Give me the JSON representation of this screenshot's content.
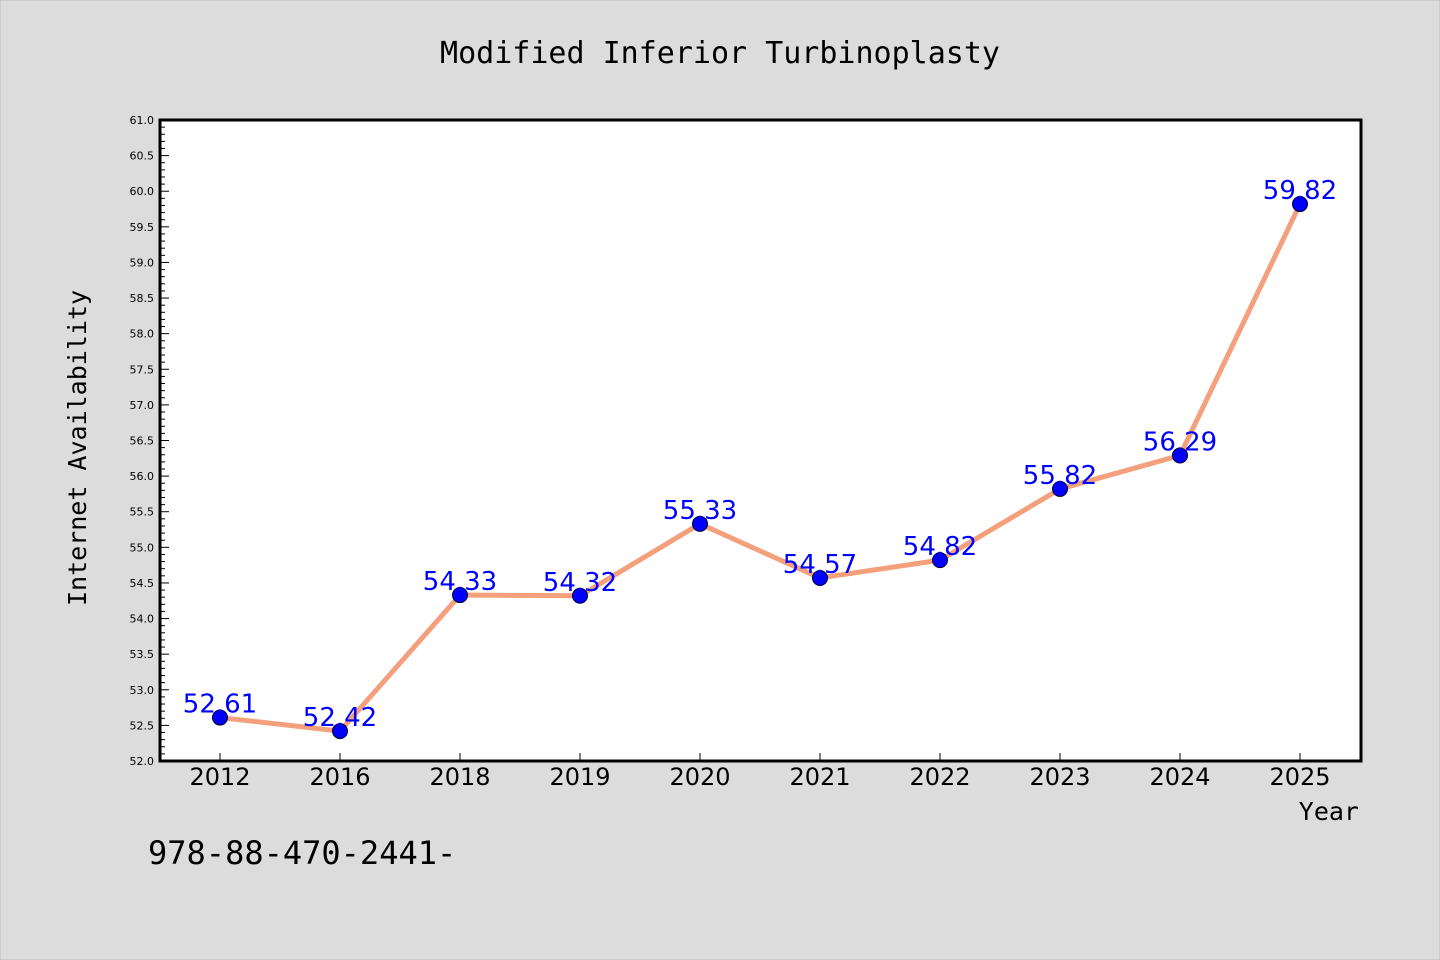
{
  "chart_data": {
    "type": "line",
    "title": "Modified Inferior Turbinoplasty",
    "xlabel": "Year",
    "ylabel": "Internet Availability",
    "categories": [
      "2012",
      "2016",
      "2018",
      "2019",
      "2020",
      "2021",
      "2022",
      "2023",
      "2024",
      "2025"
    ],
    "series": [
      {
        "values": [
          52.61,
          52.42,
          54.33,
          54.32,
          55.33,
          54.57,
          54.82,
          55.82,
          56.29,
          59.82
        ],
        "data_labels": [
          "52.61",
          "52.42",
          "54.33",
          "54.32",
          "55.33",
          "54.57",
          "54.82",
          "55.82",
          "56.29",
          "59.82"
        ]
      }
    ],
    "ylim": [
      52.0,
      61.0
    ],
    "yticks": [
      "52.0",
      "52.5",
      "53.0",
      "53.5",
      "54.0",
      "54.5",
      "55.0",
      "55.5",
      "56.0",
      "56.5",
      "57.0",
      "57.5",
      "58.0",
      "58.5",
      "59.0",
      "59.5",
      "60.0",
      "60.5",
      "61.0"
    ],
    "grid": false,
    "legend": "none",
    "colors": {
      "line": "#f4a07c",
      "marker": "#0000ff",
      "label": "#0000ff",
      "background": "#dcdcdc",
      "plot_background": "#ffffff"
    }
  },
  "footer_text": "978-88-470-2441-"
}
